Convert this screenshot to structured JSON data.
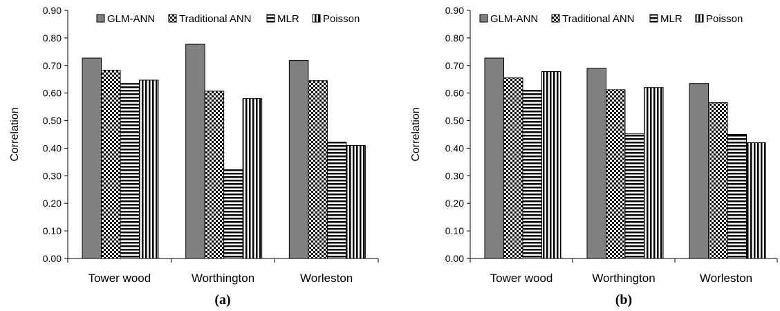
{
  "chart_data": [
    {
      "type": "bar",
      "panel_label": "(a)",
      "ylabel": "Correlation",
      "ylim": [
        0,
        0.9
      ],
      "y_ticks": [
        "0.00",
        "0.10",
        "0.20",
        "0.30",
        "0.40",
        "0.50",
        "0.60",
        "0.70",
        "0.80",
        "0.90"
      ],
      "categories": [
        "Tower wood",
        "Worthington",
        "Worleston"
      ],
      "legend_position": "top",
      "series": [
        {
          "name": "GLM-ANN",
          "pattern": "solid-gray",
          "values": [
            0.727,
            0.777,
            0.718
          ]
        },
        {
          "name": "Traditional ANN",
          "pattern": "checker",
          "values": [
            0.683,
            0.607,
            0.645
          ]
        },
        {
          "name": "MLR",
          "pattern": "horizontal-lines",
          "values": [
            0.635,
            0.322,
            0.422
          ]
        },
        {
          "name": "Poisson",
          "pattern": "vertical-lines",
          "values": [
            0.647,
            0.58,
            0.41
          ]
        }
      ]
    },
    {
      "type": "bar",
      "panel_label": "(b)",
      "ylabel": "Correlation",
      "ylim": [
        0,
        0.9
      ],
      "y_ticks": [
        "0.00",
        "0.10",
        "0.20",
        "0.30",
        "0.40",
        "0.50",
        "0.60",
        "0.70",
        "0.80",
        "0.90"
      ],
      "categories": [
        "Tower wood",
        "Worthington",
        "Worleston"
      ],
      "legend_position": "top",
      "series": [
        {
          "name": "GLM-ANN",
          "pattern": "solid-gray",
          "values": [
            0.727,
            0.69,
            0.635
          ]
        },
        {
          "name": "Traditional ANN",
          "pattern": "checker",
          "values": [
            0.655,
            0.612,
            0.565
          ]
        },
        {
          "name": "MLR",
          "pattern": "horizontal-lines",
          "values": [
            0.61,
            0.452,
            0.45
          ]
        },
        {
          "name": "Poisson",
          "pattern": "vertical-lines",
          "values": [
            0.678,
            0.62,
            0.42
          ]
        }
      ]
    }
  ]
}
